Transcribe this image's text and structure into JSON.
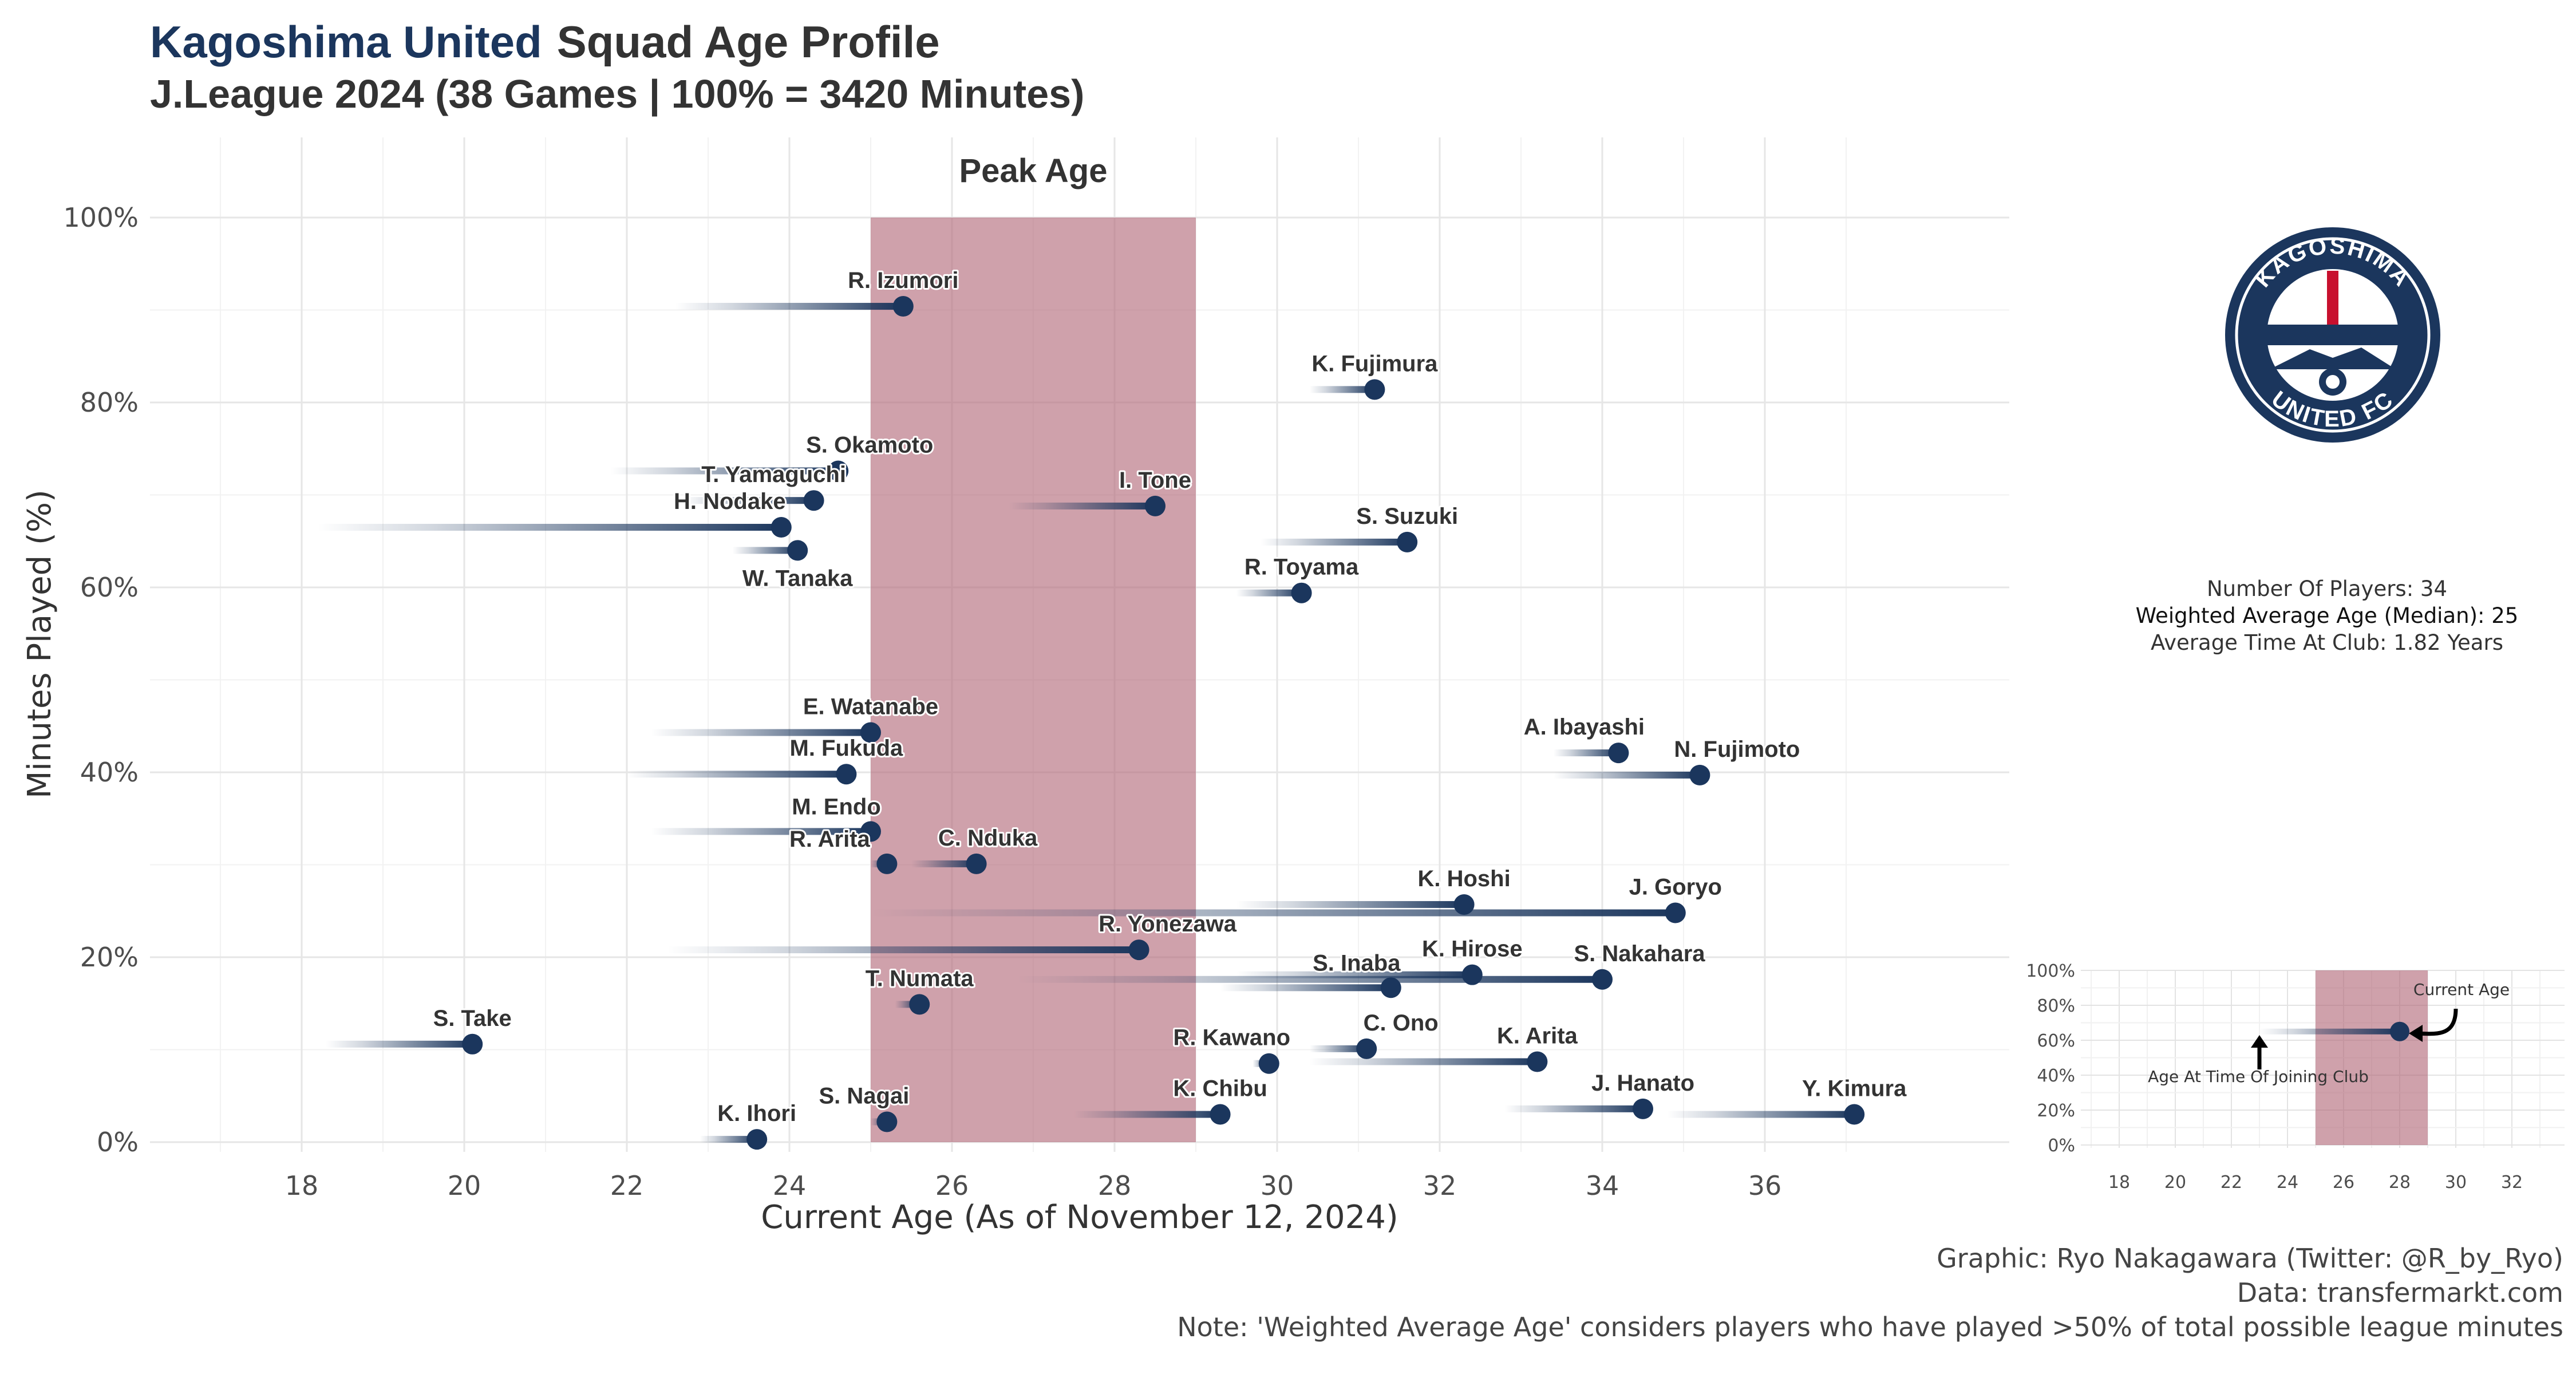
{
  "header": {
    "team": "Kagoshima United",
    "title_rest": "Squad Age Profile",
    "subtitle": "J.League 2024 (38 Games | 100% = 3420 Minutes)"
  },
  "colors": {
    "primary": "#1b365d",
    "peak_band": "#b26877",
    "grid": "#e6e6e6",
    "text": "#333333"
  },
  "chart_data": {
    "type": "scatter",
    "xlabel": "Current Age (As of November 12, 2024)",
    "ylabel": "Minutes Played (%)",
    "xlim": [
      16.5,
      38.5
    ],
    "ylim": [
      0,
      100
    ],
    "x_ticks": [
      18,
      20,
      22,
      24,
      26,
      28,
      30,
      32,
      34,
      36
    ],
    "y_ticks": [
      0,
      20,
      40,
      60,
      80,
      100
    ],
    "y_tick_labels": [
      "0%",
      "20%",
      "40%",
      "60%",
      "80%",
      "100%"
    ],
    "peak_age": {
      "label": "Peak Age",
      "start": 25,
      "end": 29
    },
    "grid": true,
    "players": [
      {
        "name": "R. Izumori",
        "age": 25.4,
        "minutes_pct": 90.4,
        "join_age": 22.6
      },
      {
        "name": "K. Fujimura",
        "age": 31.2,
        "minutes_pct": 81.4,
        "join_age": 30.4
      },
      {
        "name": "S. Okamoto",
        "age": 24.6,
        "minutes_pct": 72.6,
        "join_age": 21.8
      },
      {
        "name": "T. Yamaguchi",
        "age": 24.3,
        "minutes_pct": 69.4,
        "join_age": 22.7
      },
      {
        "name": "I. Tone",
        "age": 28.5,
        "minutes_pct": 68.8,
        "join_age": 26.7
      },
      {
        "name": "H. Nodake",
        "age": 23.9,
        "minutes_pct": 66.5,
        "join_age": 18.2
      },
      {
        "name": "S. Suzuki",
        "age": 31.6,
        "minutes_pct": 64.9,
        "join_age": 29.8
      },
      {
        "name": "W. Tanaka",
        "age": 24.1,
        "minutes_pct": 64.0,
        "join_age": 23.3
      },
      {
        "name": "R. Toyama",
        "age": 30.3,
        "minutes_pct": 59.4,
        "join_age": 29.5
      },
      {
        "name": "E. Watanabe",
        "age": 25.0,
        "minutes_pct": 44.3,
        "join_age": 22.3
      },
      {
        "name": "A. Ibayashi",
        "age": 34.2,
        "minutes_pct": 42.1,
        "join_age": 33.4
      },
      {
        "name": "M. Fukuda",
        "age": 24.7,
        "minutes_pct": 39.8,
        "join_age": 22.0
      },
      {
        "name": "N. Fujimoto",
        "age": 35.2,
        "minutes_pct": 39.7,
        "join_age": 33.4
      },
      {
        "name": "M. Endo",
        "age": 25.0,
        "minutes_pct": 33.6,
        "join_age": 22.3
      },
      {
        "name": "C. Nduka",
        "age": 26.3,
        "minutes_pct": 30.1,
        "join_age": 25.5
      },
      {
        "name": "R. Arita",
        "age": 25.2,
        "minutes_pct": 30.1,
        "join_age": 25.0
      },
      {
        "name": "J. Goryo",
        "age": 34.9,
        "minutes_pct": 24.8,
        "join_age": 25.0
      },
      {
        "name": "K. Hoshi",
        "age": 32.3,
        "minutes_pct": 25.7,
        "join_age": 29.5
      },
      {
        "name": "R. Yonezawa",
        "age": 28.3,
        "minutes_pct": 20.8,
        "join_age": 22.5
      },
      {
        "name": "S. Nakahara",
        "age": 34.0,
        "minutes_pct": 17.6,
        "join_age": 26.8
      },
      {
        "name": "K. Hirose",
        "age": 32.4,
        "minutes_pct": 18.1,
        "join_age": 29.5
      },
      {
        "name": "S. Inaba",
        "age": 31.4,
        "minutes_pct": 16.7,
        "join_age": 29.3
      },
      {
        "name": "T. Numata",
        "age": 25.6,
        "minutes_pct": 14.9,
        "join_age": 25.3
      },
      {
        "name": "S. Take",
        "age": 20.1,
        "minutes_pct": 10.6,
        "join_age": 18.3
      },
      {
        "name": "C. Ono",
        "age": 31.1,
        "minutes_pct": 10.1,
        "join_age": 30.4
      },
      {
        "name": "K. Arita",
        "age": 33.2,
        "minutes_pct": 8.7,
        "join_age": 30.4
      },
      {
        "name": "R. Kawano",
        "age": 29.9,
        "minutes_pct": 8.5,
        "join_age": 29.7
      },
      {
        "name": "K. Chibu",
        "age": 29.3,
        "minutes_pct": 3.0,
        "join_age": 27.5
      },
      {
        "name": "J. Hanato",
        "age": 34.5,
        "minutes_pct": 3.6,
        "join_age": 32.8
      },
      {
        "name": "Y. Kimura",
        "age": 37.1,
        "minutes_pct": 3.0,
        "join_age": 34.8
      },
      {
        "name": "S. Nagai",
        "age": 25.2,
        "minutes_pct": 2.2,
        "join_age": 25.0
      },
      {
        "name": "K. Ihori",
        "age": 23.6,
        "minutes_pct": 0.3,
        "join_age": 22.9
      }
    ]
  },
  "logo": {
    "top_text": "KAGOSHIMA",
    "bottom_text": "UNITED FC"
  },
  "stats": {
    "players": "Number Of Players: 34",
    "weighted_age": "Weighted Average Age (Median): 25",
    "avg_time": "Average Time At Club: 1.82 Years"
  },
  "legend": {
    "current_age_label": "Current Age",
    "join_age_label": "Age At Time Of Joining Club",
    "x_ticks": [
      18,
      20,
      22,
      24,
      26,
      28,
      30,
      32
    ],
    "y_tick_labels": [
      "0%",
      "20%",
      "40%",
      "60%",
      "80%",
      "100%"
    ],
    "example_join_age": 23,
    "example_current_age": 28,
    "example_minutes_pct": 65
  },
  "caption": {
    "graphic": "Graphic: Ryo Nakagawara (Twitter: @R_by_Ryo)",
    "data": "Data: transfermarkt.com",
    "note": "Note: 'Weighted Average Age' considers players who have played >50% of total possible league minutes"
  }
}
